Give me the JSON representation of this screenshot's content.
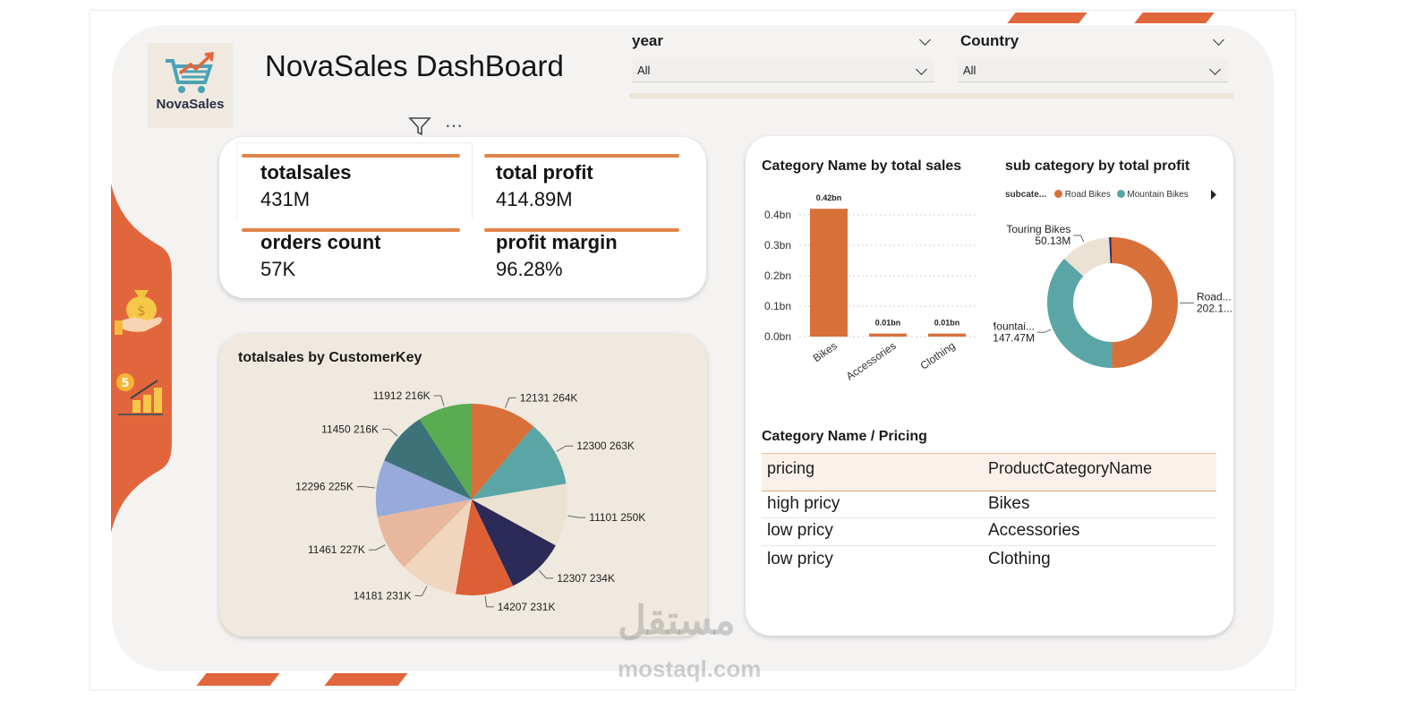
{
  "dashboard": {
    "title": "NovaSales DashBoard",
    "logo_text": "NovaSales"
  },
  "slicers": [
    {
      "label": "year",
      "selected": "All"
    },
    {
      "label": "Country",
      "selected": "All"
    }
  ],
  "kpis": [
    {
      "label": "totalsales",
      "value": "431M"
    },
    {
      "label": "total profit",
      "value": "414.89M"
    },
    {
      "label": "orders count",
      "value": "57K"
    },
    {
      "label": "profit margin",
      "value": "96.28%"
    }
  ],
  "colors": {
    "accent": "#e2663c",
    "bar": "#d8703a",
    "panel_beige": "#efe9df"
  },
  "chart_data": [
    {
      "type": "pie",
      "title": "totalsales by CustomerKey",
      "slices": [
        {
          "label": "12131",
          "display": "264K",
          "value": 264,
          "color": "#d8703a"
        },
        {
          "label": "12300",
          "display": "263K",
          "value": 263,
          "color": "#5aa6a6"
        },
        {
          "label": "11101",
          "display": "250K",
          "value": 250,
          "color": "#ece2d3"
        },
        {
          "label": "12307",
          "display": "234K",
          "value": 234,
          "color": "#2c2a57"
        },
        {
          "label": "14207",
          "display": "231K",
          "value": 231,
          "color": "#dc5f36"
        },
        {
          "label": "14181",
          "display": "231K",
          "value": 231,
          "color": "#f0d6be"
        },
        {
          "label": "11461",
          "display": "227K",
          "value": 227,
          "color": "#e8b79e"
        },
        {
          "label": "12296",
          "display": "225K",
          "value": 225,
          "color": "#97aadb"
        },
        {
          "label": "11450",
          "display": "216K",
          "value": 216,
          "color": "#3e7279"
        },
        {
          "label": "11912",
          "display": "216K",
          "value": 216,
          "color": "#5aab52"
        }
      ]
    },
    {
      "type": "bar",
      "title": "Category Name by total sales",
      "categories": [
        "Bikes",
        "Accessories",
        "Clothing"
      ],
      "values": [
        0.42,
        0.01,
        0.01
      ],
      "data_labels": [
        "0.42bn",
        "0.01bn",
        "0.01bn"
      ],
      "y_ticks": [
        "0.4bn",
        "0.3bn",
        "0.2bn",
        "0.1bn",
        "0.0bn"
      ],
      "ylim": [
        0,
        0.45
      ],
      "grid": true
    },
    {
      "type": "pie",
      "title": "sub category by total profit",
      "legend_title": "subcate...",
      "legend": [
        {
          "name": "Road Bikes",
          "color": "#d8703a"
        },
        {
          "name": "Mountain Bikes",
          "color": "#5aa6a6"
        }
      ],
      "slices": [
        {
          "label": "Road...",
          "display": "202.1...",
          "value": 202.1,
          "color": "#d8703a"
        },
        {
          "label": "Mountai...",
          "display": "147.47M",
          "value": 147.47,
          "color": "#5aa6a6"
        },
        {
          "label": "Touring Bikes",
          "display": "50.13M",
          "value": 50.13,
          "color": "#ece2d3"
        },
        {
          "label": "",
          "display": "",
          "value": 2.2,
          "color": "#2c2a57"
        },
        {
          "label": "",
          "display": "",
          "value": 1.2,
          "color": "#dc5f36"
        }
      ]
    }
  ],
  "pricing_table": {
    "title": "Category Name / Pricing",
    "headers": [
      "pricing",
      "ProductCategoryName"
    ],
    "rows": [
      [
        "high pricy",
        "Bikes"
      ],
      [
        "low pricy",
        "Accessories"
      ],
      [
        "low pricy",
        "Clothing"
      ]
    ]
  },
  "watermark": {
    "arabic": "مستقل",
    "latin": "mostaql.com"
  }
}
